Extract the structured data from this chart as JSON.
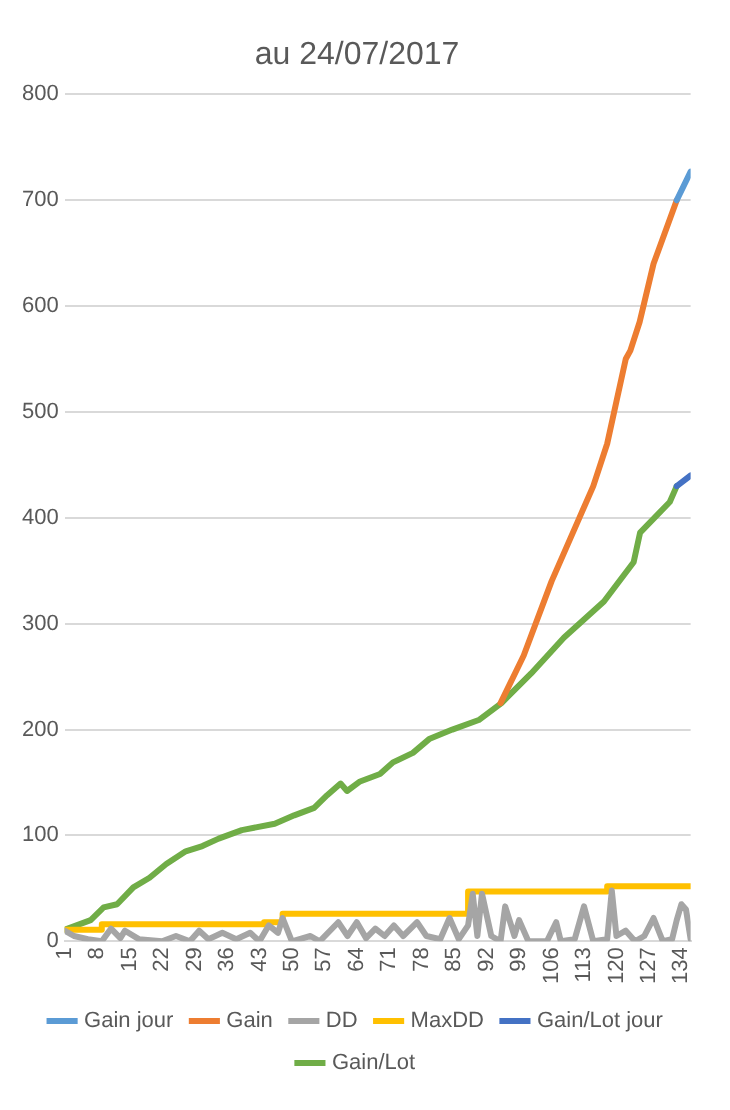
{
  "chart_data": {
    "type": "line",
    "title": "au 24/07/2017",
    "xlim": [
      1,
      136
    ],
    "xticks": [
      1,
      8,
      15,
      22,
      29,
      36,
      43,
      50,
      57,
      64,
      71,
      78,
      85,
      92,
      99,
      106,
      113,
      120,
      127,
      134
    ],
    "ylim": [
      0,
      800
    ],
    "yticks": [
      0,
      100,
      200,
      300,
      400,
      500,
      600,
      700,
      800
    ],
    "grid": "y",
    "legend": "bottom",
    "marker": "none",
    "line_style": "solid",
    "series": [
      {
        "name": "Gain jour",
        "color": "#5b9bd5",
        "x": [
          133,
          136
        ],
        "values": [
          700,
          727
        ]
      },
      {
        "name": "Gain",
        "color": "#ed7d31",
        "x": [
          95,
          100,
          106,
          112,
          115,
          118,
          120,
          122,
          123,
          125,
          128,
          133
        ],
        "values": [
          225,
          270,
          340,
          400,
          430,
          470,
          510,
          550,
          558,
          585,
          640,
          700
        ]
      },
      {
        "name": "DD",
        "color": "#a5a5a5",
        "x": [
          1,
          3,
          6,
          9,
          11,
          13,
          14,
          17,
          22,
          25,
          28,
          30,
          32,
          35,
          38,
          41,
          43,
          45,
          47,
          48,
          50,
          54,
          56,
          60,
          62,
          64,
          66,
          68,
          70,
          72,
          74,
          77,
          79,
          82,
          84,
          86,
          88,
          89,
          90,
          91,
          93,
          95,
          96,
          98,
          99,
          101,
          105,
          107,
          108,
          111,
          113,
          115,
          118,
          119,
          120,
          122,
          124,
          126,
          128,
          130,
          132,
          133,
          134,
          135,
          136
        ],
        "values": [
          10,
          5,
          2,
          0,
          12,
          3,
          10,
          2,
          0,
          5,
          0,
          10,
          2,
          8,
          2,
          8,
          0,
          15,
          8,
          22,
          0,
          5,
          0,
          18,
          5,
          18,
          3,
          12,
          5,
          15,
          5,
          18,
          5,
          2,
          22,
          2,
          15,
          45,
          5,
          45,
          5,
          0,
          33,
          5,
          20,
          0,
          0,
          18,
          0,
          2,
          33,
          0,
          2,
          48,
          5,
          10,
          0,
          5,
          22,
          0,
          2,
          20,
          35,
          30,
          2
        ]
      },
      {
        "name": "MaxDD",
        "color": "#ffc000",
        "x": [
          1,
          9,
          9,
          44,
          44,
          48,
          48,
          88,
          88,
          118,
          118,
          136
        ],
        "values": [
          11,
          11,
          16,
          16,
          18,
          18,
          26,
          26,
          47,
          47,
          52,
          52
        ]
      },
      {
        "name": "Gain/Lot jour",
        "color": "#4472c4",
        "x": [
          133,
          136
        ],
        "values": [
          430,
          440
        ]
      },
      {
        "name": "Gain/Lot",
        "color": "#70ad47",
        "x": [
          1,
          6.6,
          9.4,
          12.3,
          15.8,
          19.3,
          22.9,
          27.1,
          30.7,
          34.2,
          39.2,
          46.3,
          50.5,
          54.8,
          57.6,
          60.5,
          61.9,
          64.7,
          69,
          71.8,
          76.1,
          79.6,
          84.6,
          90.3,
          95.2,
          101.6,
          108.7,
          117.3,
          123.7,
          125.1,
          131.5,
          133
        ],
        "values": [
          11,
          20,
          32,
          35,
          51,
          60,
          73,
          85,
          90,
          97,
          105,
          111,
          119,
          126,
          138,
          149,
          142,
          151,
          158,
          169,
          178,
          191,
          200,
          209,
          225,
          253,
          287,
          321,
          358,
          386,
          415,
          430
        ]
      }
    ]
  }
}
